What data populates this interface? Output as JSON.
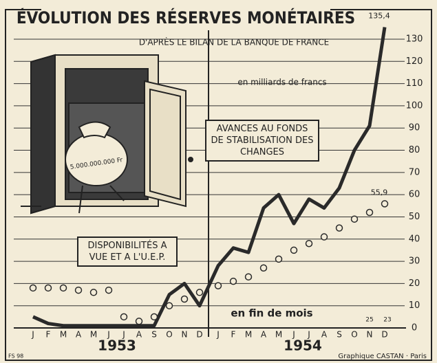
{
  "chart_data": {
    "type": "line",
    "title": "ÉVOLUTION DES RÉSERVES MONÉTAIRES",
    "subtitle": "D'APRÈS LE BILAN DE LA BANQUE DE FRANCE",
    "y_label": "en milliards de francs",
    "x_note": "en fin de mois",
    "categories": [
      "J",
      "F",
      "M",
      "A",
      "M",
      "J",
      "J",
      "A",
      "S",
      "O",
      "N",
      "D",
      "J",
      "F",
      "M",
      "A",
      "M",
      "J",
      "J",
      "A",
      "S",
      "O",
      "N",
      "D"
    ],
    "years": [
      "1953",
      "1954"
    ],
    "series": [
      {
        "name": "AVANCES AU FONDS DE STABILISATION DES CHANGES",
        "color": "#2a2a2a",
        "style": "thick",
        "values": [
          5,
          2,
          1,
          1,
          1,
          1,
          1,
          1,
          1,
          15,
          20,
          10,
          28,
          36,
          34,
          54,
          60,
          47,
          58,
          54,
          63,
          80,
          91,
          135.4
        ],
        "value_labels": [
          null,
          null,
          null,
          null,
          null,
          null,
          null,
          null,
          null,
          null,
          null,
          null,
          null,
          null,
          null,
          null,
          null,
          null,
          null,
          null,
          null,
          null,
          null,
          "135,4"
        ]
      },
      {
        "name": "DISPONIBILITÉS A VUE ET A L'U.E.P.",
        "color": "#2a2a2a",
        "style": "circles",
        "values": [
          18,
          18,
          18,
          17,
          16,
          17,
          5,
          3,
          5,
          10,
          13,
          16,
          19,
          21,
          23,
          27,
          31,
          35,
          38,
          41,
          45,
          49,
          52,
          55.9
        ],
        "value_labels": [
          null,
          null,
          null,
          null,
          null,
          null,
          null,
          null,
          null,
          null,
          null,
          null,
          null,
          null,
          null,
          null,
          null,
          null,
          null,
          null,
          null,
          null,
          null,
          "55,9"
        ]
      }
    ],
    "annotations": [
      "25",
      "23"
    ],
    "ylim": [
      0,
      130
    ],
    "yticks": [
      0,
      10,
      20,
      30,
      40,
      50,
      60,
      70,
      80,
      90,
      100,
      110,
      120,
      130
    ],
    "grid": true,
    "bag_label": "5.000.000.000 Fr",
    "footer_left": "FS 98",
    "footer_right": "Graphique CASTAN · Paris"
  }
}
